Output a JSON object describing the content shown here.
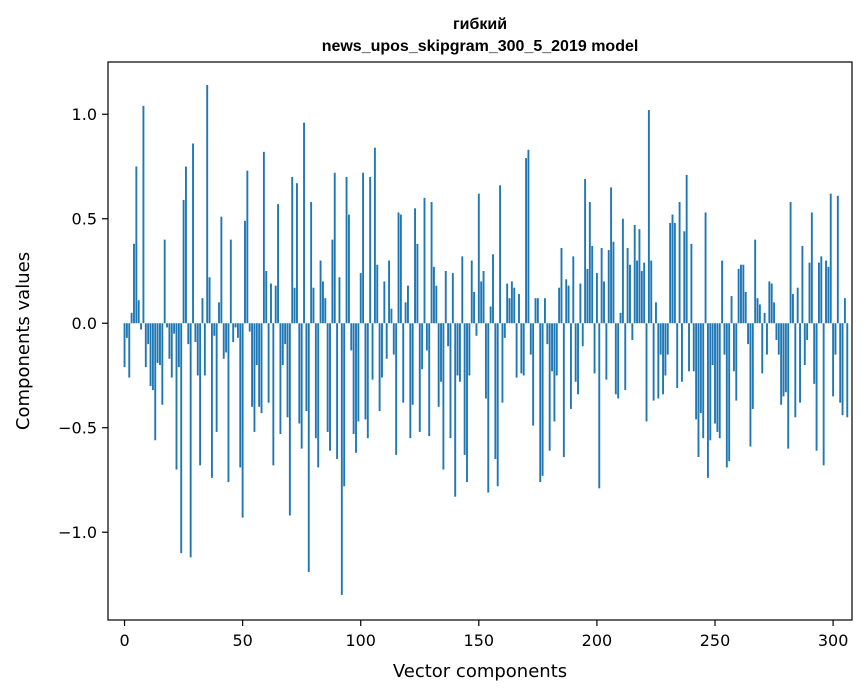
{
  "chart_data": {
    "type": "bar",
    "title": "гибкий",
    "subtitle": "news_upos_skipgram_300_5_2019 model",
    "xlabel": "Vector components",
    "ylabel": "Components values",
    "xlim": [
      -7,
      308
    ],
    "ylim": [
      -1.42,
      1.25
    ],
    "x_ticks": [
      0,
      50,
      100,
      150,
      200,
      250,
      300
    ],
    "x_tick_labels": [
      "0",
      "50",
      "100",
      "150",
      "200",
      "250",
      "300"
    ],
    "y_ticks": [
      -1.0,
      -0.5,
      0.0,
      0.5,
      1.0
    ],
    "y_tick_labels": [
      "−1.0",
      "−0.5",
      "0.0",
      "0.5",
      "1.0"
    ],
    "bar_color": "#1f77b4",
    "grid": false,
    "values": [
      -0.21,
      -0.07,
      -0.26,
      0.05,
      0.38,
      0.75,
      0.11,
      -0.03,
      1.04,
      -0.21,
      -0.1,
      -0.3,
      -0.32,
      -0.56,
      -0.19,
      -0.2,
      -0.39,
      0.4,
      -0.02,
      -0.17,
      -0.26,
      -0.05,
      -0.7,
      -0.21,
      -1.1,
      0.59,
      0.75,
      -0.1,
      -1.12,
      0.86,
      -0.09,
      -0.25,
      -0.68,
      0.12,
      -0.25,
      1.14,
      0.22,
      -0.74,
      -0.06,
      -0.52,
      0.1,
      0.51,
      -0.17,
      -0.14,
      -0.76,
      0.4,
      -0.09,
      -0.02,
      -0.07,
      -0.69,
      -0.93,
      0.49,
      0.73,
      -0.04,
      -0.4,
      -0.52,
      -0.2,
      -0.4,
      -0.43,
      0.82,
      0.25,
      -0.38,
      0.19,
      -0.68,
      0.18,
      0.57,
      -0.53,
      -0.2,
      -0.1,
      -0.45,
      -0.92,
      0.7,
      0.17,
      0.67,
      -0.48,
      -0.6,
      0.96,
      -0.42,
      -1.19,
      0.58,
      0.17,
      -0.55,
      -0.69,
      0.3,
      0.2,
      0.12,
      -0.52,
      -0.61,
      0.4,
      0.72,
      -0.65,
      0.22,
      -1.3,
      -0.78,
      0.7,
      0.52,
      -0.13,
      -0.53,
      -0.62,
      -0.47,
      0.24,
      0.72,
      -0.46,
      -0.55,
      0.7,
      -0.27,
      0.84,
      0.28,
      -0.42,
      -0.26,
      0.2,
      -0.17,
      0.3,
      0.07,
      -0.15,
      -0.63,
      0.53,
      0.52,
      -0.38,
      0.1,
      0.18,
      -0.55,
      -0.39,
      0.55,
      0.38,
      -0.52,
      -0.22,
      0.6,
      -0.13,
      -0.54,
      0.58,
      0.27,
      0.18,
      -0.4,
      -0.28,
      -0.7,
      0.25,
      -0.11,
      -0.55,
      0.24,
      -0.83,
      -0.25,
      -0.28,
      0.32,
      -0.63,
      -0.76,
      -0.25,
      0.3,
      0.15,
      -0.06,
      0.62,
      0.2,
      0.25,
      -0.36,
      -0.81,
      0.08,
      0.33,
      -0.65,
      -0.78,
      0.66,
      -0.38,
      -0.07,
      0.19,
      0.12,
      0.2,
      0.17,
      -0.26,
      0.14,
      -0.24,
      -0.25,
      0.79,
      0.83,
      -0.15,
      -0.49,
      0.12,
      0.12,
      -0.76,
      -0.73,
      0.12,
      -0.1,
      -0.61,
      -0.23,
      -0.47,
      -0.25,
      0.17,
      0.36,
      -0.64,
      0.21,
      0.18,
      -0.41,
      0.32,
      -0.28,
      -0.34,
      0.19,
      -0.11,
      0.69,
      0.26,
      0.58,
      0.37,
      -0.24,
      0.24,
      -0.79,
      0.36,
      0.2,
      -0.27,
      0.35,
      0.65,
      0.39,
      -0.34,
      -0.36,
      0.05,
      0.5,
      -0.32,
      0.36,
      0.28,
      -0.08,
      0.47,
      0.3,
      0.45,
      0.25,
      0.29,
      -0.47,
      1.02,
      0.3,
      -0.37,
      0.1,
      -0.36,
      -0.15,
      -0.34,
      -0.25,
      -0.15,
      0.48,
      0.52,
      0.48,
      -0.31,
      0.58,
      -0.28,
      0.44,
      0.71,
      -0.23,
      0.38,
      -0.23,
      -0.46,
      -0.64,
      -0.43,
      -0.55,
      0.53,
      -0.74,
      -0.56,
      -0.2,
      -0.48,
      -0.52,
      -0.55,
      0.3,
      -0.15,
      -0.69,
      -0.66,
      0.13,
      -0.23,
      -0.37,
      0.26,
      0.28,
      0.28,
      0.15,
      -0.1,
      -0.59,
      -0.41,
      0.4,
      0.12,
      0.09,
      -0.24,
      0.05,
      -0.15,
      0.2,
      0.19,
      0.1,
      -0.08,
      -0.15,
      -0.39,
      -0.35,
      -0.33,
      -0.6,
      0.58,
      0.14,
      -0.45,
      0.17,
      -0.38,
      0.37,
      -0.2,
      -0.08,
      0.29,
      0.53,
      -0.29,
      -0.61,
      0.29,
      0.32,
      -0.68,
      0.3,
      0.27,
      0.62,
      -0.35,
      -0.15,
      0.61,
      -0.38,
      -0.44,
      0.12,
      -0.45
    ]
  }
}
